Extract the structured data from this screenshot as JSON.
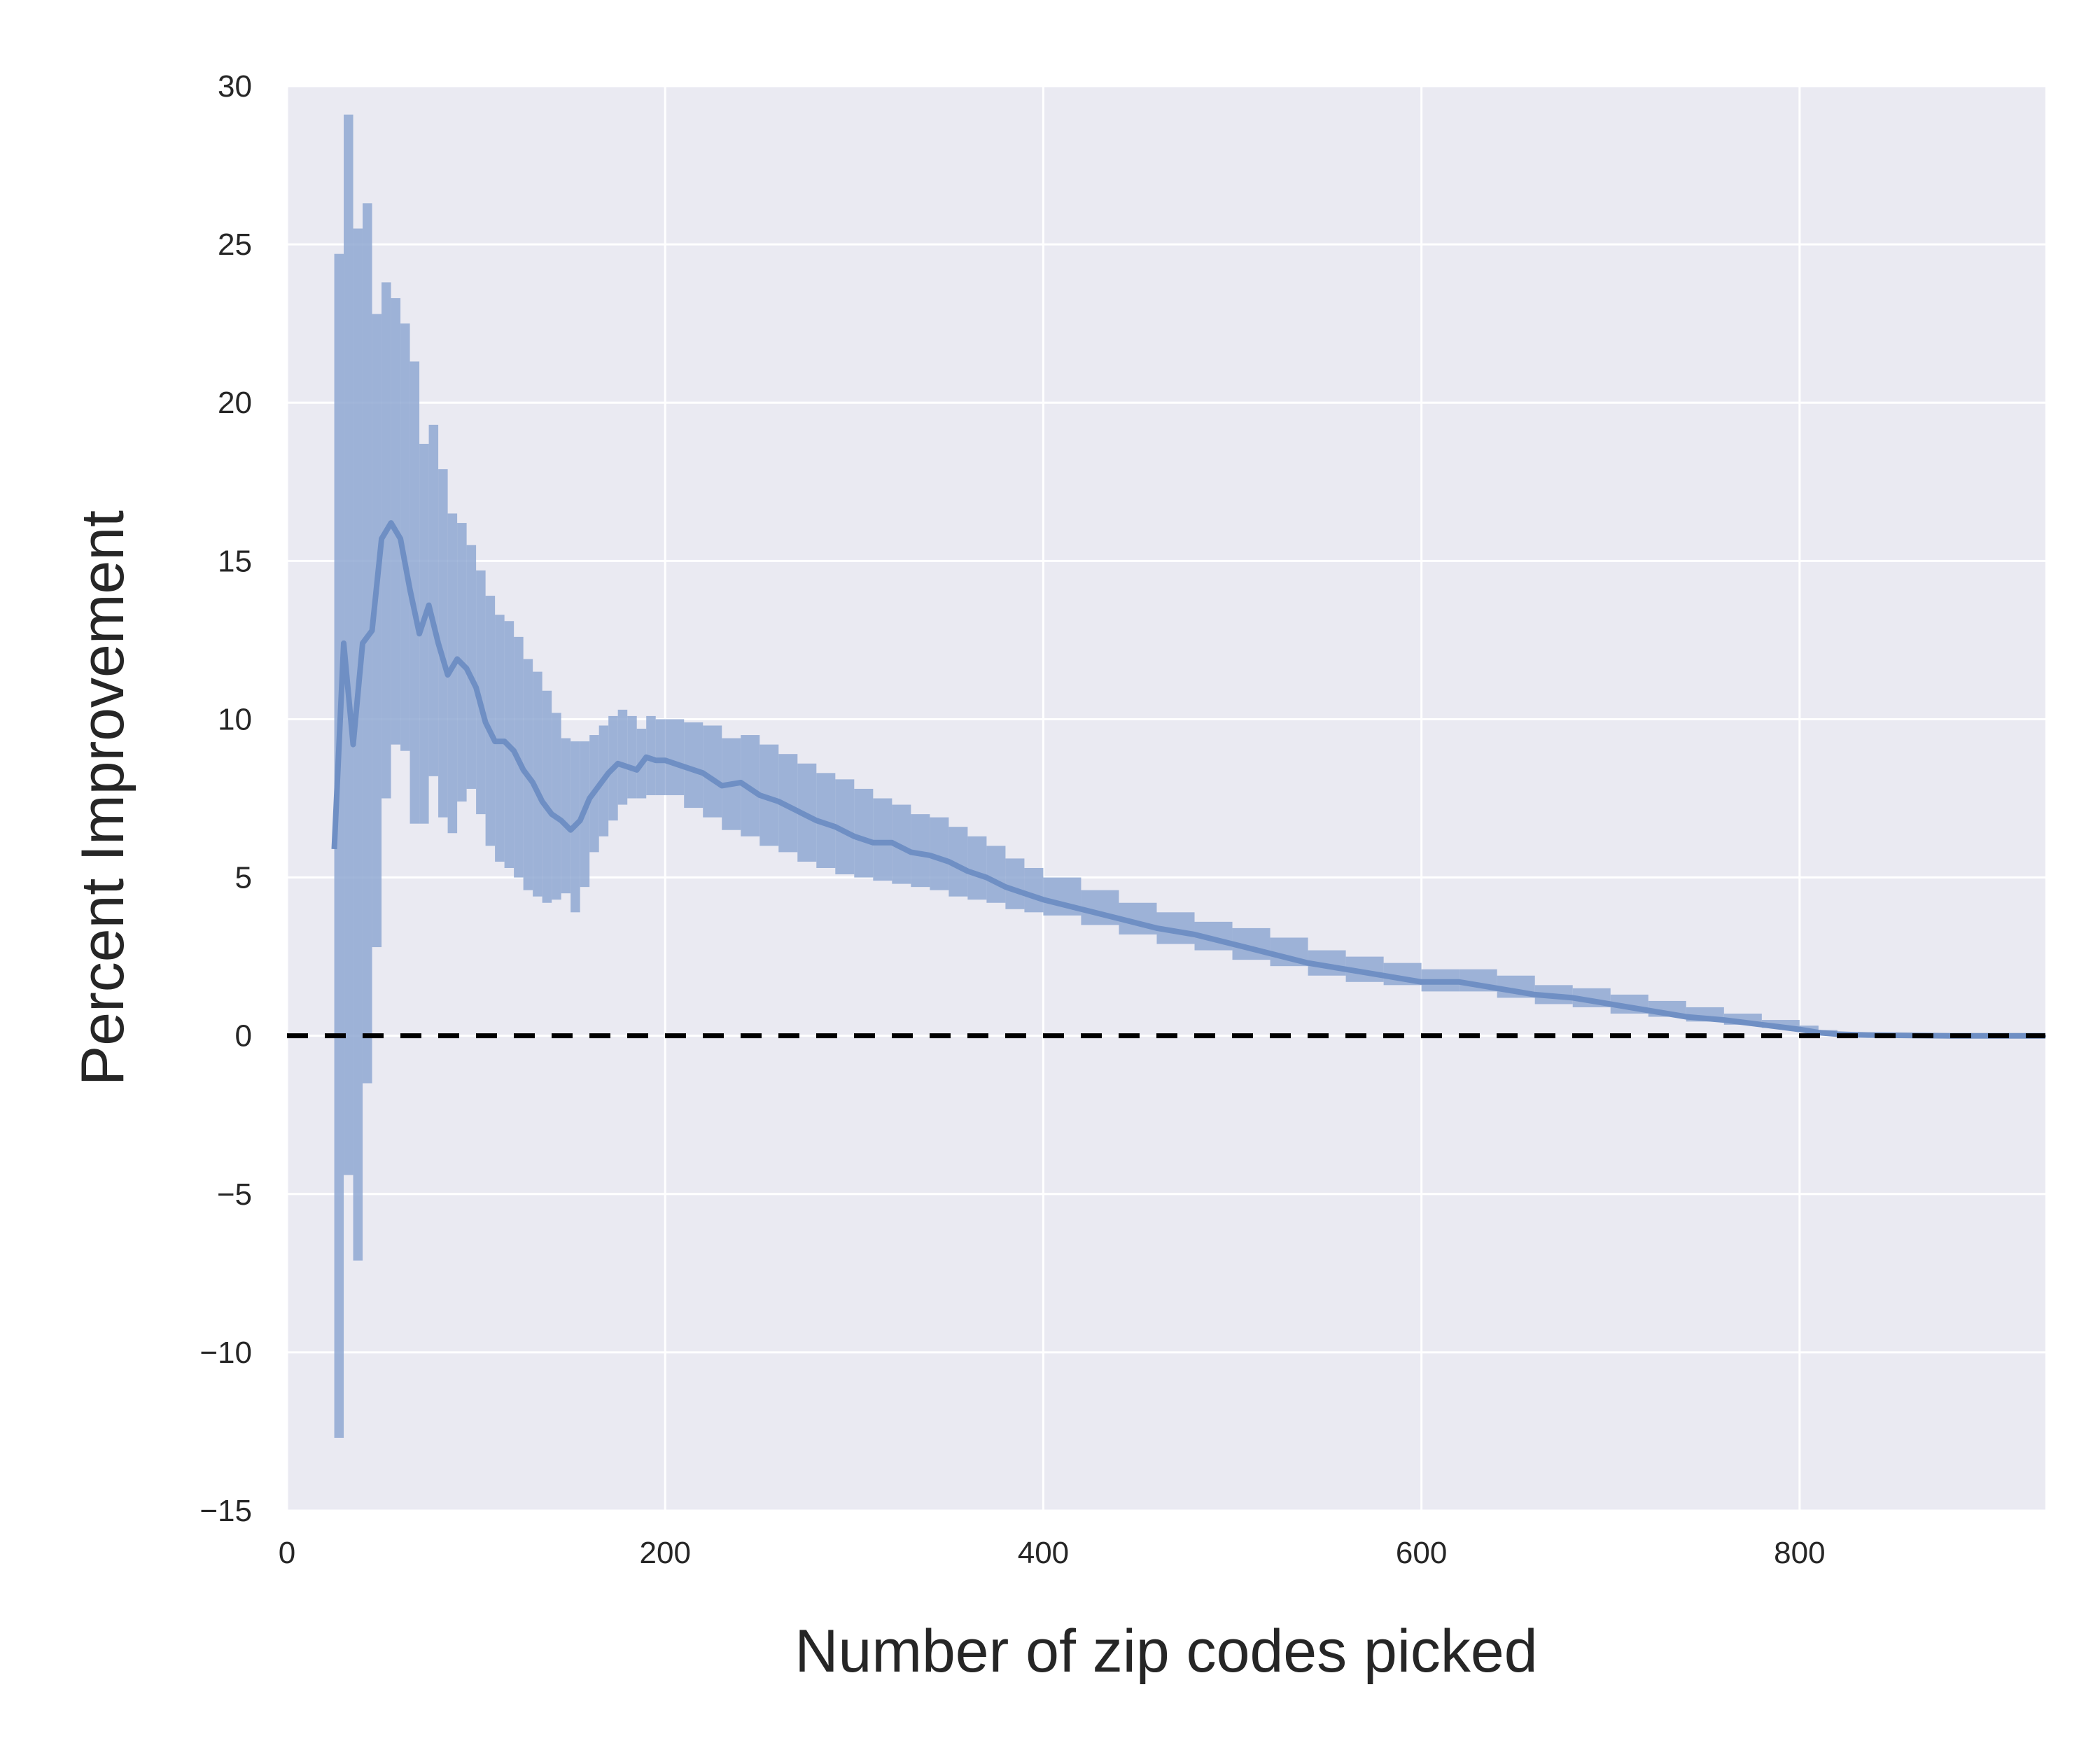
{
  "chart_data": {
    "type": "line",
    "title": "",
    "xlabel": "Number of zip codes picked",
    "ylabel": "Percent Improvement",
    "xlim": [
      0,
      930
    ],
    "ylim": [
      -15,
      30
    ],
    "xticks": [
      0,
      200,
      400,
      600,
      800
    ],
    "yticks": [
      -15,
      -10,
      -5,
      0,
      5,
      10,
      15,
      20,
      25,
      30
    ],
    "xtick_labels": [
      "0",
      "200",
      "400",
      "600",
      "800"
    ],
    "ytick_labels": [
      "−15",
      "−10",
      "−5",
      "0",
      "5",
      "10",
      "15",
      "20",
      "25",
      "30"
    ],
    "grid": true,
    "background_color": "#EAEAF2",
    "series_color": "#6F8FC4",
    "band_color": "#8FA8D2",
    "reference_line": {
      "y": 0,
      "style": "dashed",
      "color": "#000000"
    },
    "series": [
      {
        "x": [
          25,
          30,
          35,
          40,
          45,
          50,
          55,
          60,
          65,
          70,
          75,
          80,
          85,
          90,
          95,
          100,
          105,
          110,
          115,
          120,
          125,
          130,
          135,
          140,
          145,
          150,
          155,
          160,
          165,
          170,
          175,
          180,
          185,
          190,
          195,
          200,
          210,
          220,
          230,
          240,
          250,
          260,
          270,
          280,
          290,
          300,
          310,
          320,
          330,
          340,
          350,
          360,
          370,
          380,
          390,
          400,
          420,
          440,
          460,
          480,
          500,
          520,
          540,
          560,
          580,
          600,
          620,
          640,
          660,
          680,
          700,
          720,
          740,
          760,
          780,
          800,
          810,
          820,
          830,
          840,
          860,
          880,
          900,
          930
        ],
        "y": [
          5.9,
          12.4,
          9.2,
          12.4,
          12.8,
          15.7,
          16.2,
          15.7,
          14.1,
          12.7,
          13.6,
          12.4,
          11.4,
          11.9,
          11.6,
          11.0,
          9.9,
          9.3,
          9.3,
          9.0,
          8.4,
          8.0,
          7.4,
          7.0,
          6.8,
          6.5,
          6.8,
          7.5,
          7.9,
          8.3,
          8.6,
          8.5,
          8.4,
          8.8,
          8.7,
          8.7,
          8.5,
          8.3,
          7.9,
          8.0,
          7.6,
          7.4,
          7.1,
          6.8,
          6.6,
          6.3,
          6.1,
          6.1,
          5.8,
          5.7,
          5.5,
          5.2,
          5.0,
          4.7,
          4.5,
          4.3,
          4.0,
          3.7,
          3.4,
          3.2,
          2.9,
          2.6,
          2.3,
          2.1,
          1.9,
          1.7,
          1.7,
          1.5,
          1.3,
          1.2,
          1.0,
          0.8,
          0.6,
          0.5,
          0.35,
          0.2,
          0.1,
          0.05,
          0.03,
          0.02,
          0.01,
          0.0,
          0.0,
          0.0
        ],
        "lower": [
          -12.7,
          -4.4,
          -7.1,
          -1.5,
          2.8,
          7.5,
          9.2,
          9.0,
          6.7,
          6.7,
          8.2,
          6.9,
          6.4,
          7.4,
          7.8,
          7.0,
          6.0,
          5.5,
          5.3,
          5.0,
          4.6,
          4.4,
          4.2,
          4.3,
          4.5,
          3.9,
          4.7,
          5.8,
          6.3,
          6.8,
          7.3,
          7.5,
          7.5,
          7.6,
          7.6,
          7.6,
          7.2,
          6.9,
          6.5,
          6.3,
          6.0,
          5.8,
          5.5,
          5.3,
          5.1,
          5.0,
          4.9,
          4.8,
          4.7,
          4.6,
          4.4,
          4.3,
          4.2,
          4.0,
          3.9,
          3.8,
          3.5,
          3.2,
          2.9,
          2.7,
          2.4,
          2.2,
          1.9,
          1.7,
          1.6,
          1.4,
          1.4,
          1.2,
          1.0,
          0.9,
          0.7,
          0.6,
          0.45,
          0.35,
          0.25,
          0.12,
          0.06,
          0.02,
          0.0,
          0.0,
          -0.01,
          -0.01,
          -0.01,
          -0.01
        ],
        "upper": [
          24.7,
          29.1,
          25.5,
          26.3,
          22.8,
          23.8,
          23.3,
          22.5,
          21.3,
          18.7,
          19.3,
          17.9,
          16.5,
          16.2,
          15.5,
          14.7,
          13.9,
          13.3,
          13.1,
          12.6,
          11.9,
          11.5,
          10.9,
          10.2,
          9.4,
          9.3,
          9.3,
          9.5,
          9.8,
          10.1,
          10.3,
          10.1,
          9.7,
          10.1,
          10.0,
          10.0,
          9.9,
          9.8,
          9.4,
          9.5,
          9.2,
          8.9,
          8.6,
          8.3,
          8.1,
          7.8,
          7.5,
          7.3,
          7.0,
          6.9,
          6.6,
          6.3,
          6.0,
          5.6,
          5.3,
          5.0,
          4.6,
          4.2,
          3.9,
          3.6,
          3.4,
          3.1,
          2.7,
          2.5,
          2.3,
          2.1,
          2.1,
          1.9,
          1.6,
          1.5,
          1.3,
          1.1,
          0.9,
          0.7,
          0.5,
          0.32,
          0.18,
          0.1,
          0.07,
          0.05,
          0.04,
          0.03,
          0.02,
          0.02
        ]
      }
    ]
  }
}
